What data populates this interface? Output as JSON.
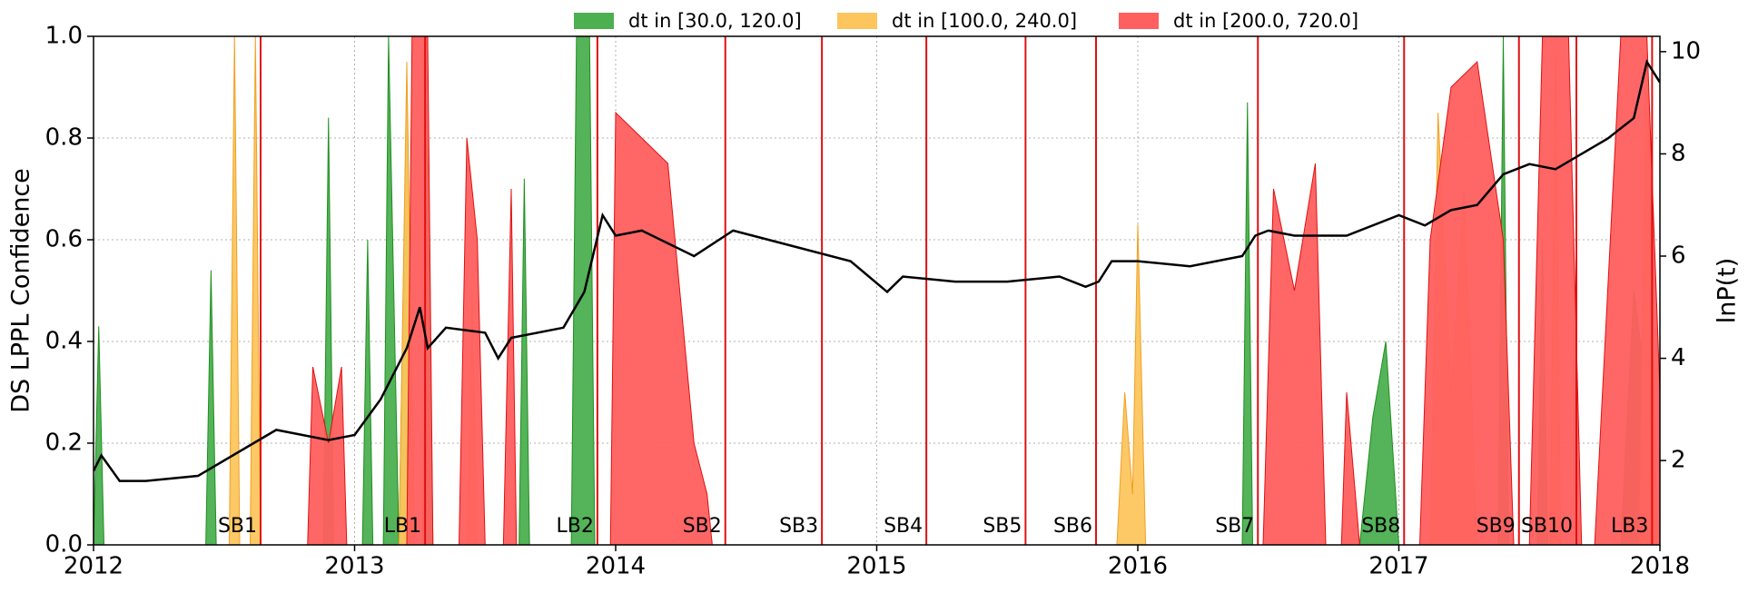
{
  "chart_data": {
    "type": "area",
    "ylabel": "DS LPPL Confidence",
    "y2label": "lnP(t)",
    "xlim": [
      2012,
      2018
    ],
    "xticks": [
      2012,
      2013,
      2014,
      2015,
      2016,
      2017,
      2018
    ],
    "ylim": [
      0,
      1
    ],
    "yticks": [
      {
        "value": 0,
        "label": "0.0"
      },
      0.2,
      0.4,
      0.6,
      0.8,
      {
        "value": 1,
        "label": "1.0"
      }
    ],
    "y2lim": [
      0.35,
      10.3
    ],
    "y2ticks": [
      2,
      4,
      6,
      8,
      10
    ],
    "grid": true,
    "legend": "top",
    "series": [
      {
        "name": "dt in [30.0, 120.0]",
        "color": "#4caf50",
        "line": "#1f8f1f",
        "x": [
          2012.0,
          2012.02,
          2012.04,
          2012.43,
          2012.45,
          2012.47,
          2012.88,
          2012.9,
          2012.92,
          2013.03,
          2013.05,
          2013.07,
          2013.11,
          2013.13,
          2013.17,
          2013.2,
          2013.23,
          2013.26,
          2013.28,
          2013.3,
          2013.63,
          2013.65,
          2013.67,
          2013.83,
          2013.85,
          2013.9,
          2013.92,
          2016.4,
          2016.42,
          2016.44,
          2016.85,
          2016.9,
          2016.95,
          2017.0,
          2017.38,
          2017.4,
          2017.42,
          2017.53,
          2017.55,
          2017.57,
          2017.85,
          2017.9,
          2017.95,
          2017.99
        ],
        "values": [
          0,
          0.43,
          0,
          0,
          0.54,
          0,
          0,
          0.84,
          0,
          0,
          0.6,
          0,
          0,
          1,
          0,
          0.9,
          0,
          0,
          0.8,
          0,
          0,
          0.72,
          0,
          0,
          1,
          1,
          0,
          0,
          0.87,
          0,
          0,
          0.25,
          0.4,
          0,
          0,
          1,
          0,
          0,
          0.6,
          0,
          0,
          0.5,
          0.3,
          0
        ]
      },
      {
        "name": "dt in [100.0, 240.0]",
        "color": "#fdc55e",
        "line": "#f0a020",
        "x": [
          2012.52,
          2012.54,
          2012.56,
          2012.6,
          2012.62,
          2012.64,
          2013.17,
          2013.2,
          2013.23,
          2013.43,
          2013.45,
          2013.47,
          2015.92,
          2015.95,
          2015.98,
          2016.0,
          2016.03,
          2017.12,
          2017.15,
          2017.2,
          2017.25,
          2017.3,
          2017.58,
          2017.6,
          2017.62,
          2017.92,
          2017.95,
          2017.99
        ],
        "values": [
          0,
          1,
          0,
          0,
          1,
          0,
          0,
          0.95,
          0,
          0,
          0.5,
          0,
          0,
          0.3,
          0.1,
          0.63,
          0,
          0,
          0.85,
          0.3,
          0.7,
          0,
          0,
          1,
          0,
          0,
          1,
          0
        ]
      },
      {
        "name": "dt in [200.0, 720.0]",
        "color": "#ff5f5f",
        "line": "#e01010",
        "x": [
          2012.82,
          2012.84,
          2012.9,
          2012.95,
          2012.97,
          2013.2,
          2013.22,
          2013.28,
          2013.3,
          2013.4,
          2013.43,
          2013.47,
          2013.5,
          2013.57,
          2013.6,
          2013.62,
          2013.98,
          2014.0,
          2014.1,
          2014.2,
          2014.3,
          2014.35,
          2014.37,
          2016.48,
          2016.52,
          2016.6,
          2016.68,
          2016.72,
          2016.78,
          2016.8,
          2016.85,
          2017.08,
          2017.12,
          2017.2,
          2017.3,
          2017.4,
          2017.44,
          2017.5,
          2017.55,
          2017.65,
          2017.7,
          2017.75,
          2017.8,
          2017.85,
          2017.95,
          2018.0
        ],
        "values": [
          0,
          0.35,
          0.2,
          0.35,
          0,
          0,
          1,
          1,
          0,
          0,
          0.8,
          0.6,
          0,
          0,
          0.7,
          0,
          0,
          0.85,
          0.8,
          0.75,
          0.2,
          0.1,
          0,
          0,
          0.7,
          0.5,
          0.75,
          0,
          0,
          0.3,
          0,
          0,
          0.6,
          0.9,
          0.95,
          0.6,
          0,
          0,
          1,
          1,
          0,
          0,
          0.5,
          1,
          1,
          0.3
        ]
      }
    ],
    "price": {
      "color": "#000000",
      "axis": "y2",
      "x": [
        2012.0,
        2012.03,
        2012.1,
        2012.2,
        2012.4,
        2012.5,
        2012.6,
        2012.7,
        2012.9,
        2013.0,
        2013.1,
        2013.2,
        2013.25,
        2013.28,
        2013.35,
        2013.5,
        2013.55,
        2013.6,
        2013.8,
        2013.88,
        2013.95,
        2014.0,
        2014.1,
        2014.3,
        2014.45,
        2014.6,
        2014.9,
        2015.04,
        2015.1,
        2015.3,
        2015.5,
        2015.7,
        2015.8,
        2015.85,
        2015.9,
        2016.0,
        2016.2,
        2016.4,
        2016.45,
        2016.5,
        2016.6,
        2016.8,
        2017.0,
        2017.1,
        2017.2,
        2017.3,
        2017.4,
        2017.5,
        2017.6,
        2017.7,
        2017.8,
        2017.9,
        2017.95,
        2018.0
      ],
      "values": [
        1.8,
        2.1,
        1.6,
        1.6,
        1.7,
        2.0,
        2.3,
        2.6,
        2.4,
        2.5,
        3.2,
        4.2,
        5.0,
        4.2,
        4.6,
        4.5,
        4.0,
        4.4,
        4.6,
        5.3,
        6.8,
        6.4,
        6.5,
        6.0,
        6.5,
        6.3,
        5.9,
        5.3,
        5.6,
        5.5,
        5.5,
        5.6,
        5.4,
        5.5,
        5.9,
        5.9,
        5.8,
        6.0,
        6.4,
        6.5,
        6.4,
        6.4,
        6.8,
        6.6,
        6.9,
        7.0,
        7.6,
        7.8,
        7.7,
        8.0,
        8.3,
        8.7,
        9.8,
        9.4
      ]
    },
    "events": [
      {
        "x": 2012.64,
        "label": "SB1"
      },
      {
        "x": 2013.27,
        "label": "LB1"
      },
      {
        "x": 2013.93,
        "label": "LB2"
      },
      {
        "x": 2014.42,
        "label": "SB2"
      },
      {
        "x": 2014.79,
        "label": "SB3"
      },
      {
        "x": 2015.19,
        "label": "SB4"
      },
      {
        "x": 2015.57,
        "label": "SB5"
      },
      {
        "x": 2015.84,
        "label": "SB6"
      },
      {
        "x": 2016.46,
        "label": "SB7"
      },
      {
        "x": 2017.02,
        "label": "SB8"
      },
      {
        "x": 2017.46,
        "label": "SB9"
      },
      {
        "x": 2017.68,
        "label": "SB10"
      },
      {
        "x": 2017.97,
        "label": "LB3"
      }
    ],
    "event_color": "#e01010"
  }
}
